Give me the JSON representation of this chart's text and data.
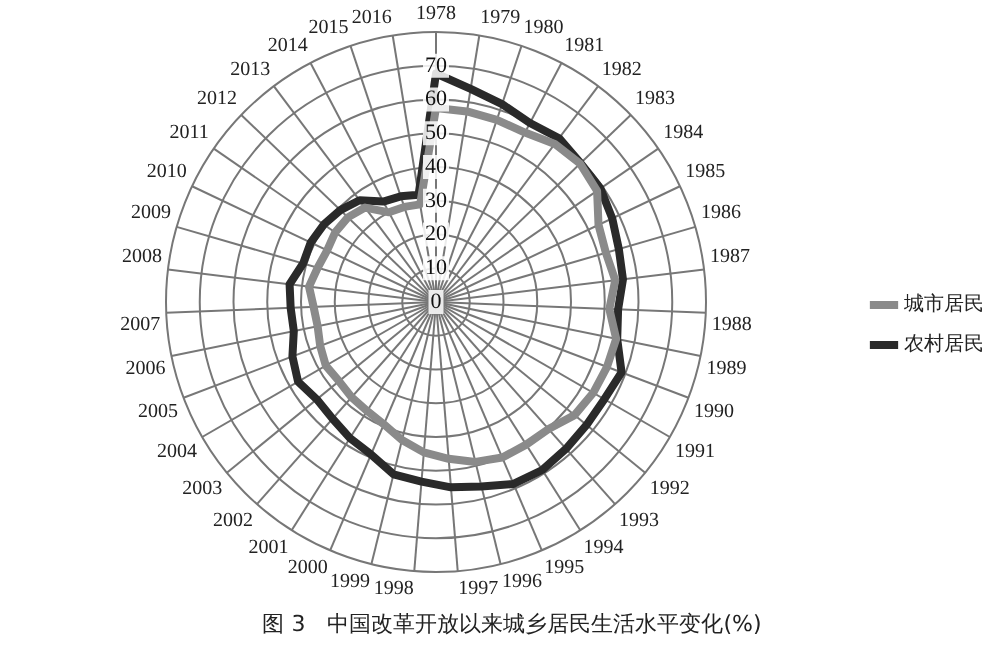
{
  "chart_data": {
    "type": "radar",
    "title": "图 3　中国改革开放以来城乡居民生活水平变化(%)",
    "categories": [
      "1978",
      "1979",
      "1980",
      "1981",
      "1982",
      "1983",
      "1984",
      "1985",
      "1986",
      "1987",
      "1988",
      "1989",
      "1990",
      "1991",
      "1992",
      "1993",
      "1994",
      "1995",
      "1996",
      "1997",
      "1998",
      "1999",
      "2000",
      "2001",
      "2002",
      "2003",
      "2004",
      "2005",
      "2006",
      "2007",
      "2008",
      "2009",
      "2010",
      "2011",
      "2012",
      "2013",
      "2014",
      "2015",
      "2016"
    ],
    "series": [
      {
        "name": "城市居民",
        "color": "#8a8a8a",
        "values": [
          57.5,
          57.2,
          56.9,
          56.7,
          58.6,
          59.2,
          58.0,
          53.3,
          52.4,
          53.5,
          51.4,
          54.5,
          54.2,
          53.8,
          53.0,
          50.3,
          50.0,
          50.1,
          48.8,
          46.6,
          44.7,
          42.1,
          39.4,
          38.2,
          37.7,
          37.1,
          37.7,
          36.7,
          35.8,
          36.3,
          37.9,
          36.5,
          35.7,
          36.3,
          36.2,
          35.0,
          30.0,
          29.7,
          29.3
        ]
      },
      {
        "name": "农村居民",
        "color": "#2a2a2a",
        "values": [
          67.7,
          64.0,
          61.8,
          59.9,
          60.7,
          59.4,
          59.2,
          57.8,
          56.4,
          55.8,
          54.0,
          54.8,
          58.8,
          57.6,
          57.6,
          58.1,
          58.9,
          58.6,
          56.3,
          55.1,
          53.4,
          52.6,
          49.1,
          47.7,
          46.2,
          45.6,
          47.2,
          45.5,
          43.0,
          43.1,
          43.7,
          41.0,
          41.1,
          40.4,
          39.3,
          37.7,
          33.6,
          33.0,
          32.2
        ]
      }
    ],
    "ylim": [
      0,
      80
    ],
    "yticks": [
      0,
      10,
      20,
      30,
      40,
      50,
      60,
      70
    ],
    "grid": true,
    "legend": "right",
    "marker": "none"
  }
}
